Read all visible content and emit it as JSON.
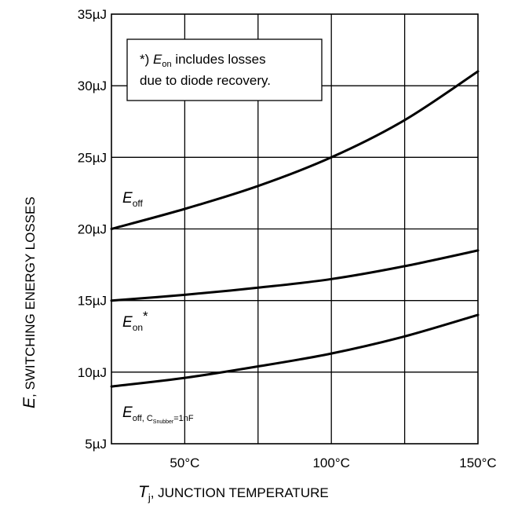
{
  "chart_data": {
    "type": "line",
    "xlabel": {
      "symbol": "T",
      "sub": "j",
      "text": ", JUNCTION TEMPERATURE"
    },
    "ylabel": {
      "symbol": "E",
      "text": ", SWITCHING ENERGY LOSSES"
    },
    "xlim": [
      25,
      150
    ],
    "ylim": [
      5,
      35
    ],
    "x_ticks": [
      {
        "value": 50,
        "label": "50°C"
      },
      {
        "value": 100,
        "label": "100°C"
      },
      {
        "value": 150,
        "label": "150°C"
      }
    ],
    "y_ticks": [
      {
        "value": 35,
        "label": "35µJ"
      },
      {
        "value": 30,
        "label": "30µJ"
      },
      {
        "value": 25,
        "label": "25µJ"
      },
      {
        "value": 20,
        "label": "20µJ"
      },
      {
        "value": 15,
        "label": "15µJ"
      },
      {
        "value": 10,
        "label": "10µJ"
      },
      {
        "value": 5,
        "label": "5µJ"
      }
    ],
    "grid": true,
    "series": [
      {
        "name": "E_off",
        "label": {
          "symbol": "E",
          "sub": "off"
        },
        "x": [
          25,
          50,
          75,
          100,
          125,
          150
        ],
        "y": [
          20.0,
          21.4,
          23.0,
          25.0,
          27.6,
          31.0
        ]
      },
      {
        "name": "E_on*",
        "label": {
          "symbol": "E",
          "sub": "on",
          "sup": "*"
        },
        "x": [
          25,
          50,
          75,
          100,
          125,
          150
        ],
        "y": [
          15.0,
          15.4,
          15.9,
          16.5,
          17.4,
          18.5
        ]
      },
      {
        "name": "E_off, C_Snubber=1nF",
        "label": {
          "symbol": "E",
          "sub": "off, C",
          "subsub": "Snubber",
          "tail": "=1nF"
        },
        "x": [
          25,
          50,
          75,
          100,
          125,
          150
        ],
        "y": [
          9.0,
          9.6,
          10.4,
          11.3,
          12.5,
          14.0
        ]
      }
    ],
    "annotation": {
      "line1_prefix": "*) ",
      "line1_symbol": "E",
      "line1_sub": "on",
      "line1_suffix": " includes losses",
      "line2": "due to diode recovery."
    }
  }
}
